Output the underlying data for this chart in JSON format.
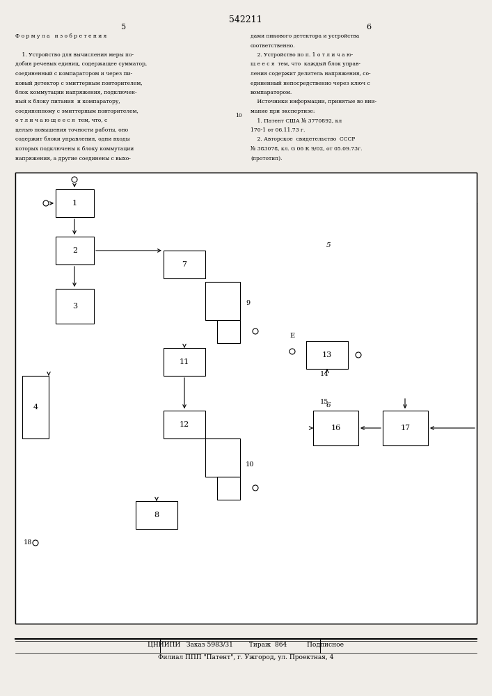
{
  "title": "542211",
  "page_left": "5",
  "page_right": "6",
  "bg_color": "#f0ede8",
  "left_col_text": [
    "Ф о р м у л а   и з о б р е т е н и я",
    "",
    "    1. Устройство для вычисления меры по-",
    "добия речевых единиц, содержащее сумматор,",
    "соединенный с компаратором и через пи-",
    "ковый детектор с эмиттерным повторителем,",
    "блок коммутации напряжения, подключен-",
    "ный к блоку питания  и компаратору,",
    "соединенному с эмиттерным повторителем,",
    "о т л и ч а ю щ е е с я  тем, что, с",
    "целью повышения точности работы, оно",
    "содержит блоки управления, одни входы",
    "которых подключены к блоку коммутации",
    "напряжения, а другие соединены с выхо-"
  ],
  "right_col_text": [
    "дами пикового детектора и устройства",
    "соответственно.",
    "    2. Устройство по п. 1 о т л и ч а ю-",
    "щ е е с я  тем, что  каждый блок управ-",
    "ления содержит делитель напряжения, со-",
    "единенный непосредственно через ключ с",
    "компаратором.",
    "    Источники информации, принятые во вни-",
    "мание при экспертизе:",
    "    1. Патент США № 3770892, кл",
    "170-1 от 06.11.73 г.",
    "    2. Авторское  свидетельство  СССР",
    "№ 383078, кл. G 06 К 9/02, от 05.09.73г.",
    "(прототип)."
  ],
  "footer_line1": "ЦНИИПИ   Заказ 5983/31        Тираж  864          Подписное",
  "footer_line2": "Филиал ППП \"Патент\", г. Ужгород, ул. Проектная, 4"
}
